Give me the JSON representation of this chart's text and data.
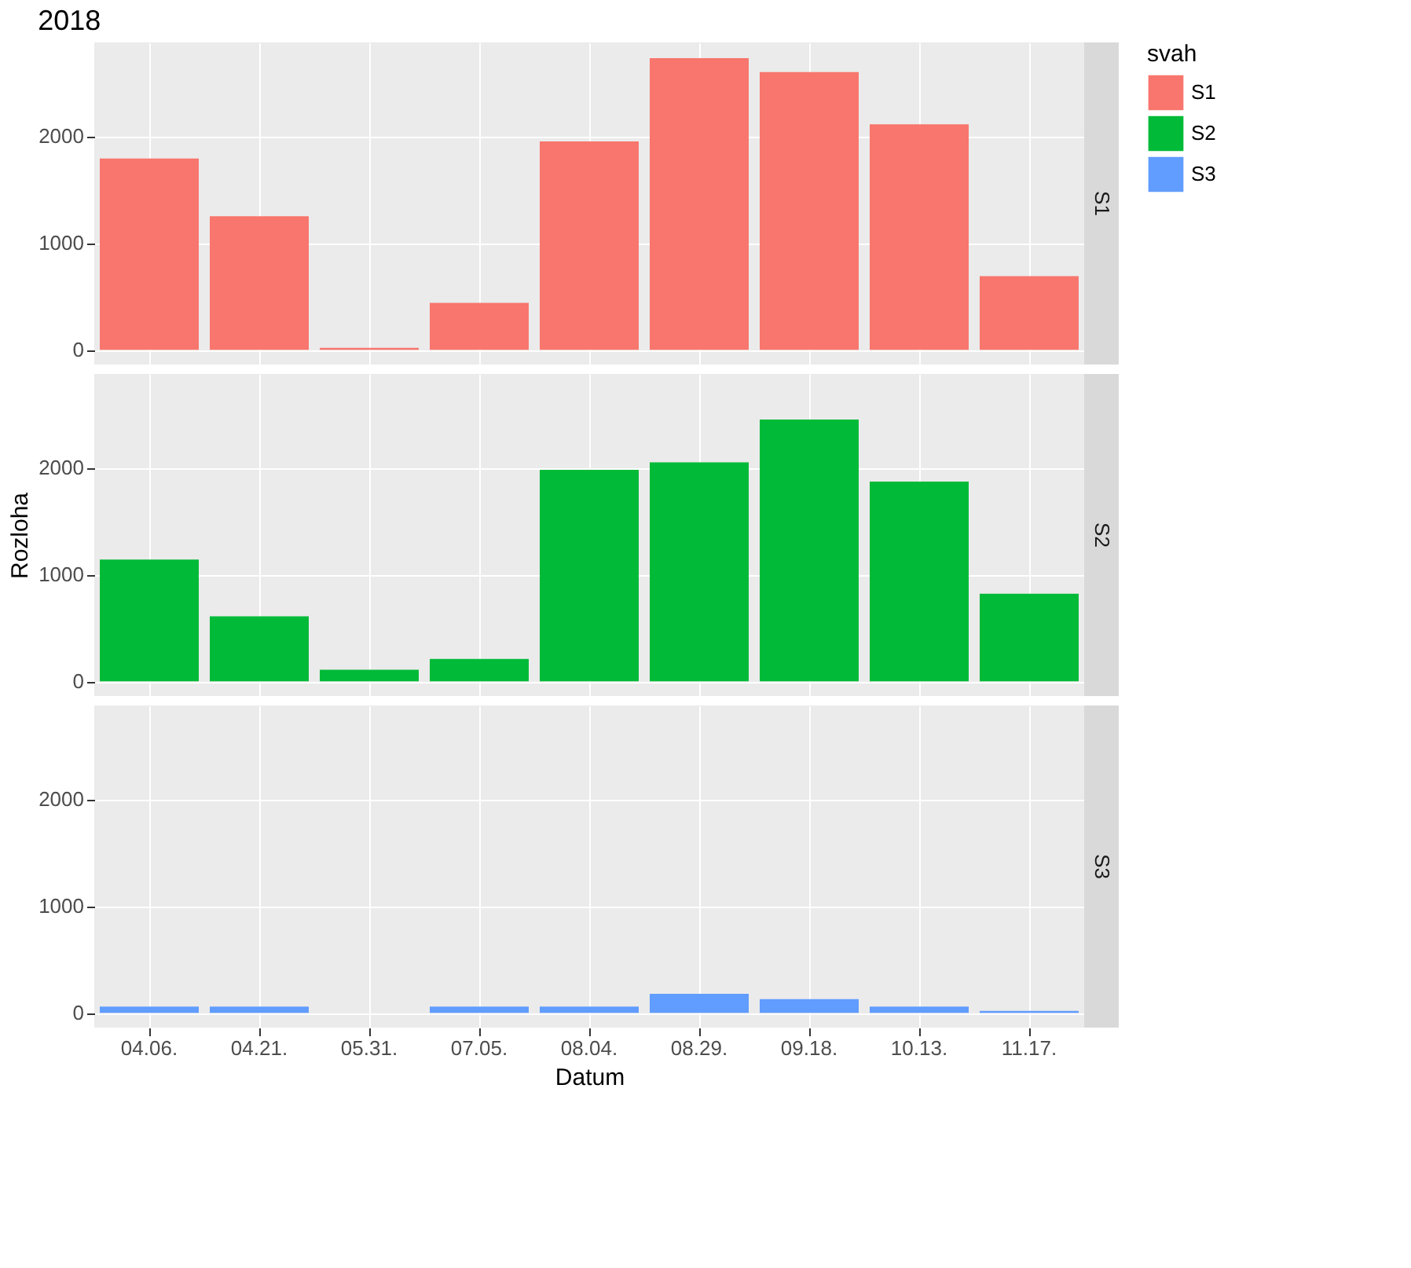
{
  "chart_data": [
    {
      "type": "bar",
      "title": "2018",
      "legend_title": "svah",
      "legend": "right",
      "categories": [
        "04.06.",
        "04.21.",
        "05.31.",
        "07.05.",
        "08.04.",
        "08.29.",
        "09.18.",
        "10.13.",
        "11.17."
      ],
      "series": [
        {
          "name": "S1",
          "color": "#f8766d",
          "values": [
            1790,
            1250,
            20,
            440,
            1950,
            2730,
            2600,
            2110,
            690
          ]
        }
      ],
      "ylim": [
        -137,
        2877
      ],
      "yticks": [
        0,
        1000,
        2000
      ],
      "grid": true,
      "tick_labels": "y"
    },
    {
      "type": "bar",
      "ylabel": "Rozloha",
      "categories": [
        "04.06.",
        "04.21.",
        "05.31.",
        "07.05.",
        "08.04.",
        "08.29.",
        "09.18.",
        "10.13.",
        "11.17."
      ],
      "series": [
        {
          "name": "S2",
          "color": "#00ba38",
          "values": [
            1140,
            610,
            110,
            210,
            1980,
            2050,
            2450,
            1870,
            820
          ]
        }
      ],
      "ylim": [
        -137,
        2877
      ],
      "yticks": [
        0,
        1000,
        2000
      ],
      "grid": true,
      "tick_labels": "y"
    },
    {
      "type": "bar",
      "xlabel": "Datum",
      "categories": [
        "04.06.",
        "04.21.",
        "05.31.",
        "07.05.",
        "08.04.",
        "08.29.",
        "09.18.",
        "10.13.",
        "11.17."
      ],
      "series": [
        {
          "name": "S3",
          "color": "#619cff",
          "values": [
            60,
            60,
            0,
            60,
            60,
            180,
            130,
            60,
            20
          ]
        }
      ],
      "ylim": [
        -137,
        2877
      ],
      "yticks": [
        0,
        1000,
        2000
      ],
      "grid": true
    }
  ]
}
